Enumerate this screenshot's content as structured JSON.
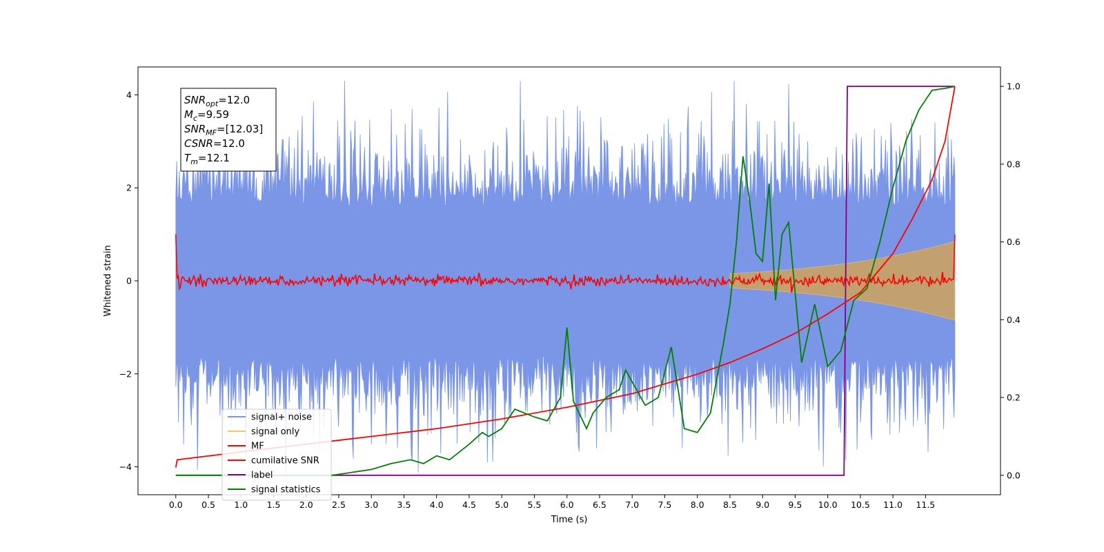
{
  "chart_data": {
    "type": "line",
    "xlabel": "Time (s)",
    "ylabel": "Whitened strain",
    "xlim": [
      -0.58,
      12.65
    ],
    "ylim": [
      -4.6,
      4.6
    ],
    "y2lim": [
      -0.05,
      1.05
    ],
    "x_ticks": [
      "0.0",
      "0.5",
      "1.0",
      "1.5",
      "2.0",
      "2.5",
      "3.0",
      "3.5",
      "4.0",
      "4.5",
      "5.0",
      "5.5",
      "6.0",
      "6.5",
      "7.0",
      "7.5",
      "8.0",
      "8.5",
      "9.0",
      "9.5",
      "10.0",
      "10.5",
      "11.0",
      "11.5"
    ],
    "y_ticks": [
      "4",
      "2",
      "0",
      "−2",
      "−4"
    ],
    "y2_ticks": [
      "1.0",
      "0.8",
      "0.6",
      "0.4",
      "0.2",
      "0.0"
    ],
    "annotation": [
      {
        "sym": "SNR",
        "sub": "opt",
        "val": "=12.0"
      },
      {
        "sym": "M",
        "sub": "c",
        "val": "=9.59"
      },
      {
        "sym": "SNR",
        "sub": "MF",
        "val": "=[12.03]"
      },
      {
        "sym": "CSNR",
        "sub": "",
        "val": "=12.0"
      },
      {
        "sym": "T",
        "sub": "m",
        "val": "=12.1"
      }
    ],
    "legend": {
      "placement": "lower-left",
      "entries": [
        "signal+ noise",
        "signal only",
        "MF",
        "cumilative SNR",
        "label",
        "signal statistics"
      ]
    },
    "colors": {
      "signal_noise": "#7b96e6",
      "signal_only": "#f5c55f",
      "signal_fill": "#c2a06f",
      "mf": "#ff0000",
      "cumulative_snr": "#ff0000",
      "label": "#800080",
      "signal_statistics": "#008000"
    },
    "series": [
      {
        "name": "label",
        "axis": "right",
        "x": [
          0.0,
          10.25,
          10.3,
          11.95
        ],
        "y": [
          0.0,
          0.0,
          1.0,
          1.0
        ]
      },
      {
        "name": "cumilative SNR",
        "axis": "right",
        "x": [
          0.0,
          0.02,
          1.0,
          2.0,
          3.0,
          4.0,
          5.0,
          6.0,
          7.0,
          7.5,
          8.0,
          8.5,
          9.0,
          9.5,
          10.0,
          10.5,
          11.0,
          11.3,
          11.6,
          11.8,
          11.95
        ],
        "y": [
          0.02,
          0.04,
          0.06,
          0.08,
          0.1,
          0.12,
          0.145,
          0.175,
          0.21,
          0.235,
          0.26,
          0.29,
          0.325,
          0.365,
          0.415,
          0.47,
          0.57,
          0.66,
          0.76,
          0.86,
          1.0
        ]
      },
      {
        "name": "signal statistics",
        "axis": "right",
        "x": [
          0.0,
          2.4,
          2.8,
          3.0,
          3.3,
          3.6,
          3.8,
          4.0,
          4.2,
          4.5,
          4.7,
          4.8,
          5.0,
          5.2,
          5.5,
          5.7,
          5.9,
          6.0,
          6.1,
          6.3,
          6.4,
          6.6,
          6.8,
          6.9,
          7.0,
          7.2,
          7.4,
          7.6,
          7.8,
          8.0,
          8.2,
          8.4,
          8.5,
          8.6,
          8.7,
          8.8,
          8.9,
          9.0,
          9.1,
          9.2,
          9.3,
          9.4,
          9.6,
          9.8,
          10.0,
          10.2,
          10.4,
          10.6,
          10.8,
          11.0,
          11.2,
          11.4,
          11.6,
          11.8,
          11.95
        ],
        "y": [
          0.0,
          0.0,
          0.01,
          0.015,
          0.03,
          0.04,
          0.03,
          0.05,
          0.04,
          0.08,
          0.11,
          0.1,
          0.12,
          0.17,
          0.15,
          0.14,
          0.2,
          0.38,
          0.19,
          0.12,
          0.16,
          0.2,
          0.22,
          0.27,
          0.24,
          0.18,
          0.2,
          0.33,
          0.12,
          0.11,
          0.16,
          0.34,
          0.44,
          0.6,
          0.82,
          0.71,
          0.57,
          0.55,
          0.75,
          0.45,
          0.62,
          0.65,
          0.29,
          0.44,
          0.28,
          0.32,
          0.45,
          0.48,
          0.6,
          0.74,
          0.86,
          0.94,
          0.99,
          0.995,
          1.0
        ]
      }
    ]
  }
}
